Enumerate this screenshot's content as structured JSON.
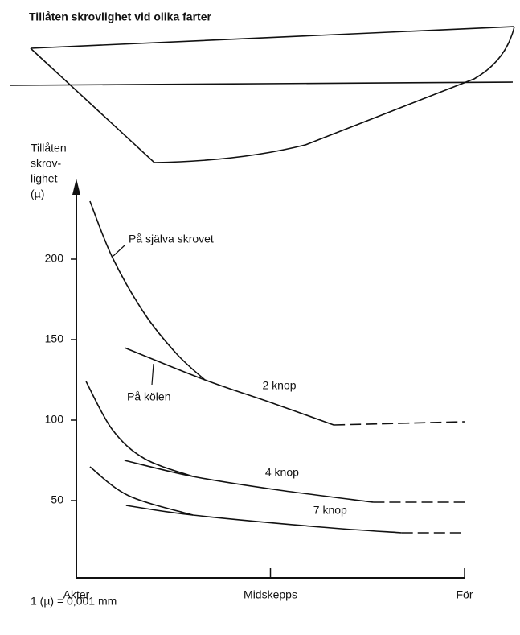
{
  "title": "Tillåten skrovlighet vid olika farter",
  "chart_data": {
    "type": "line",
    "y_label": [
      "Tillåten",
      "skrov-",
      "lighet",
      "(µ)"
    ],
    "xlim": [
      0,
      1
    ],
    "ylim": [
      0,
      245
    ],
    "xticks": [
      {
        "value": 0,
        "label": "Akter"
      },
      {
        "value": 0.5,
        "label": "Midskepps"
      },
      {
        "value": 1,
        "label": "För"
      }
    ],
    "yticks": [
      50,
      100,
      150,
      200
    ],
    "color": "#111111",
    "series": [
      {
        "name": "2 knop",
        "x": [
          0.124,
          0.331,
          0.5,
          0.663
        ],
        "values": [
          145,
          125,
          111,
          97
        ],
        "style": "solid"
      },
      {
        "x": [
          0.663,
          1.0
        ],
        "values": [
          97,
          99
        ],
        "style": "dashed"
      },
      {
        "x": [
          0.035,
          0.093,
          0.176,
          0.259,
          0.331
        ],
        "values": [
          236,
          201,
          166,
          141,
          125
        ],
        "style": "solid"
      },
      {
        "name": "4 knop",
        "x": [
          0.124,
          0.3,
          0.507,
          0.765
        ],
        "values": [
          75,
          65,
          57,
          49
        ],
        "style": "solid"
      },
      {
        "x": [
          0.765,
          1.0
        ],
        "values": [
          49,
          49
        ],
        "style": "dashed"
      },
      {
        "x": [
          0.025,
          0.093,
          0.176,
          0.3
        ],
        "values": [
          124,
          94,
          76,
          65
        ],
        "style": "solid"
      },
      {
        "name": "7 knop",
        "x": [
          0.128,
          0.3,
          0.631,
          0.838
        ],
        "values": [
          47,
          41,
          33.5,
          30
        ],
        "style": "solid"
      },
      {
        "x": [
          0.838,
          1.0
        ],
        "values": [
          30,
          30
        ],
        "style": "dashed"
      },
      {
        "x": [
          0.035,
          0.135,
          0.3
        ],
        "values": [
          71,
          53,
          41
        ],
        "style": "solid"
      }
    ],
    "annotations": [
      "På själva skrovet",
      "På kölen"
    ],
    "footnote": "1 (µ) = 0,001 mm"
  }
}
